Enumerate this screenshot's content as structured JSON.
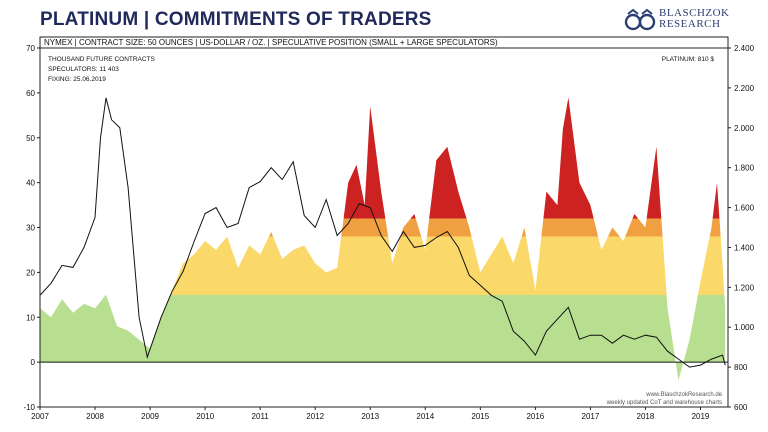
{
  "header": {
    "title": "PLATINUM | COMMITMENTS OF TRADERS",
    "logo_line1": "BLASCHZOK",
    "logo_line2": "RESEARCH"
  },
  "info_bar": "NYMEX | CONTRACT SIZE: 50 OUNCES | US-DOLLAR / OZ. | SPECULATIVE POSITION (SMALL + LARGE SPECULATORS)",
  "notes": {
    "unit": "THOUSAND FUTURE CONTRACTS",
    "speculators": "SPECULATORS: 11 403",
    "fixing": "FIXING: 25.06.2019",
    "platinum": "PLATINUM: 810 $"
  },
  "footer": {
    "line1": "www.BlaschzokResearch.de",
    "line2": "weekly updated CoT and warehouse charts"
  },
  "colors": {
    "title": "#1f2a5a",
    "red": "#cc2222",
    "orange": "#f0a040",
    "yellow": "#fbd86a",
    "green": "#b8df90",
    "price_line": "#111111",
    "zero_line": "#111111"
  },
  "chart_data": {
    "type": "area",
    "left_axis": {
      "label": "",
      "ylim": [
        -10,
        70
      ],
      "ticks": [
        -10,
        0,
        10,
        20,
        30,
        40,
        50,
        60,
        70
      ]
    },
    "right_axis": {
      "label": "",
      "ylim": [
        600,
        2400
      ],
      "ticks": [
        "600",
        "800",
        "1.000",
        "1.200",
        "1.400",
        "1.600",
        "1.800",
        "2.000",
        "2.200",
        "2.400"
      ]
    },
    "x_axis": {
      "xlim": [
        2007.0,
        2019.5
      ],
      "ticks": [
        "2007",
        "2008",
        "2009",
        "2010",
        "2011",
        "2012",
        "2013",
        "2014",
        "2015",
        "2016",
        "2017",
        "2018",
        "2019"
      ]
    },
    "grid": false,
    "color_bands": [
      {
        "from": -10,
        "to": 15,
        "color": "green"
      },
      {
        "from": 15,
        "to": 28,
        "color": "yellow"
      },
      {
        "from": 28,
        "to": 32,
        "color": "orange"
      },
      {
        "from": 32,
        "to": 70,
        "color": "red"
      }
    ],
    "series": [
      {
        "name": "Speculative position",
        "axis": "left",
        "x": [
          2007.0,
          2007.2,
          2007.4,
          2007.6,
          2007.8,
          2008.0,
          2008.2,
          2008.4,
          2008.6,
          2008.8,
          2009.0,
          2009.2,
          2009.4,
          2009.6,
          2009.8,
          2010.0,
          2010.2,
          2010.4,
          2010.6,
          2010.8,
          2011.0,
          2011.2,
          2011.4,
          2011.6,
          2011.8,
          2012.0,
          2012.2,
          2012.4,
          2012.6,
          2012.75,
          2012.9,
          2013.0,
          2013.2,
          2013.4,
          2013.6,
          2013.8,
          2014.0,
          2014.2,
          2014.4,
          2014.6,
          2014.8,
          2015.0,
          2015.2,
          2015.4,
          2015.6,
          2015.8,
          2016.0,
          2016.2,
          2016.4,
          2016.5,
          2016.6,
          2016.8,
          2017.0,
          2017.2,
          2017.4,
          2017.6,
          2017.8,
          2018.0,
          2018.2,
          2018.4,
          2018.5,
          2018.6,
          2018.8,
          2019.0,
          2019.2,
          2019.3,
          2019.4,
          2019.45
        ],
        "values": [
          12,
          10,
          14,
          11,
          13,
          12,
          15,
          8,
          7,
          5,
          3,
          10,
          16,
          22,
          24,
          27,
          25,
          28,
          21,
          26,
          24,
          29,
          23,
          25,
          26,
          22,
          20,
          21,
          40,
          44,
          35,
          57,
          38,
          22,
          30,
          33,
          25,
          45,
          48,
          38,
          30,
          20,
          24,
          28,
          22,
          30,
          16,
          38,
          35,
          52,
          59,
          40,
          35,
          25,
          30,
          27,
          33,
          30,
          48,
          12,
          4,
          -4,
          5,
          18,
          30,
          40,
          22,
          12
        ]
      },
      {
        "name": "Platinum price",
        "axis": "right",
        "x": [
          2007.0,
          2007.2,
          2007.4,
          2007.6,
          2007.8,
          2008.0,
          2008.1,
          2008.2,
          2008.3,
          2008.45,
          2008.6,
          2008.8,
          2008.95,
          2009.2,
          2009.4,
          2009.6,
          2009.8,
          2010.0,
          2010.2,
          2010.4,
          2010.6,
          2010.8,
          2011.0,
          2011.2,
          2011.4,
          2011.6,
          2011.8,
          2012.0,
          2012.2,
          2012.4,
          2012.6,
          2012.8,
          2013.0,
          2013.2,
          2013.4,
          2013.6,
          2013.8,
          2014.0,
          2014.2,
          2014.4,
          2014.6,
          2014.8,
          2015.0,
          2015.2,
          2015.4,
          2015.6,
          2015.8,
          2016.0,
          2016.2,
          2016.4,
          2016.6,
          2016.8,
          2017.0,
          2017.2,
          2017.4,
          2017.6,
          2017.8,
          2018.0,
          2018.2,
          2018.4,
          2018.6,
          2018.8,
          2019.0,
          2019.2,
          2019.4,
          2019.45
        ],
        "values": [
          1160,
          1220,
          1310,
          1300,
          1400,
          1550,
          1950,
          2150,
          2040,
          2000,
          1700,
          1050,
          850,
          1050,
          1180,
          1280,
          1430,
          1570,
          1600,
          1500,
          1520,
          1700,
          1730,
          1800,
          1740,
          1830,
          1560,
          1500,
          1640,
          1460,
          1520,
          1620,
          1600,
          1460,
          1380,
          1480,
          1400,
          1410,
          1450,
          1480,
          1400,
          1260,
          1210,
          1160,
          1130,
          980,
          930,
          860,
          980,
          1040,
          1100,
          940,
          960,
          960,
          920,
          960,
          940,
          960,
          950,
          880,
          840,
          800,
          810,
          840,
          860,
          810
        ]
      }
    ]
  }
}
